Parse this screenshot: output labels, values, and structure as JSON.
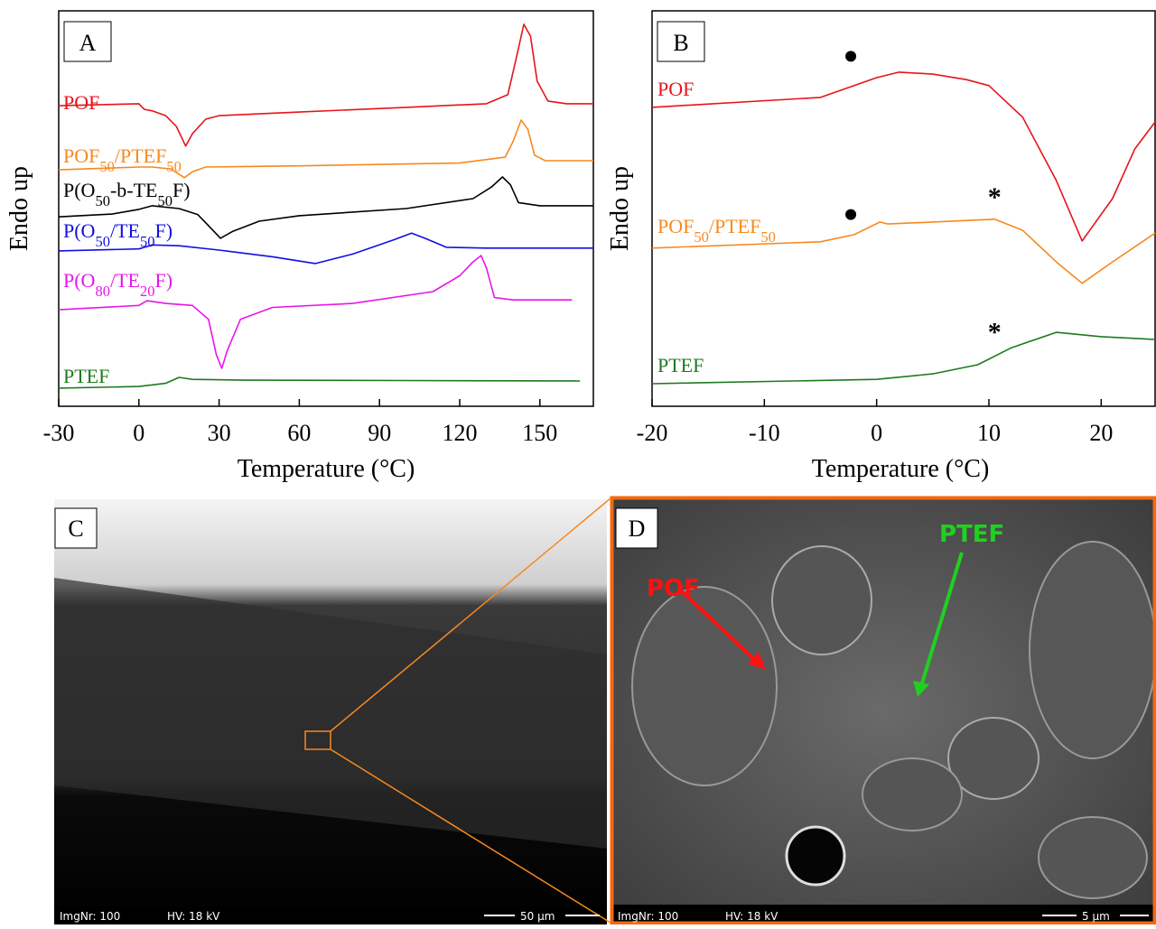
{
  "chart_data": [
    {
      "type": "line",
      "panel": "A",
      "xlabel": "Temperature (°C)",
      "ylabel": "Endo up",
      "xlim": [
        -30,
        170
      ],
      "xticks": [
        -30,
        0,
        30,
        60,
        90,
        120,
        150
      ],
      "ylim": [
        0,
        100
      ],
      "series": [
        {
          "name": "POF",
          "color": "#e8141b",
          "x": [
            -30,
            0,
            2,
            5,
            10,
            14,
            17.5,
            20,
            25,
            30,
            60,
            100,
            130,
            138,
            141.5,
            144,
            146.5,
            149,
            153,
            160,
            170
          ],
          "values": [
            76.0,
            76.5,
            75.1,
            74.7,
            73.5,
            70.8,
            65.8,
            68.9,
            72.6,
            73.5,
            74.4,
            75.6,
            76.5,
            78.8,
            89.0,
            96.6,
            93.6,
            82.2,
            77.2,
            76.5,
            76.5
          ]
        },
        {
          "name": "POF50/PTEF50",
          "color": "#f7891f",
          "x": [
            -30,
            0,
            5,
            12,
            17,
            20,
            25,
            60,
            120,
            137,
            140,
            143,
            145.5,
            148,
            152,
            170
          ],
          "values": [
            59.8,
            60.5,
            60.5,
            60.0,
            57.8,
            59.3,
            60.5,
            60.8,
            61.5,
            63.0,
            67.0,
            72.4,
            70.0,
            63.5,
            62.1,
            62.1
          ]
        },
        {
          "name": "P(O50-b-TE50F)",
          "color": "#000000",
          "x": [
            -30,
            -10,
            0,
            5,
            15,
            22,
            27,
            30.5,
            35,
            45,
            60,
            100,
            125,
            132,
            136,
            139,
            142,
            150,
            170
          ],
          "values": [
            47.9,
            48.6,
            49.8,
            50.7,
            50.0,
            48.5,
            45.0,
            42.5,
            44.2,
            46.8,
            48.2,
            50.0,
            52.5,
            55.5,
            58.0,
            56.0,
            51.5,
            50.7,
            50.7
          ]
        },
        {
          "name": "P(O50/TE50F)",
          "color": "#1010e0",
          "x": [
            -30,
            0,
            5,
            15,
            30,
            50,
            66,
            80,
            95,
            102,
            107,
            115,
            130,
            170
          ],
          "values": [
            39.3,
            39.8,
            40.8,
            40.6,
            39.5,
            37.8,
            36.1,
            38.5,
            42.0,
            43.8,
            42.5,
            40.2,
            40.0,
            40.0
          ]
        },
        {
          "name": "P(O80/TE20F)",
          "color": "#e815e8",
          "x": [
            -30,
            0,
            3,
            10,
            20,
            26,
            29,
            31,
            33,
            38,
            50,
            80,
            110,
            120,
            125,
            128,
            130,
            133,
            140,
            162
          ],
          "values": [
            24.4,
            25.5,
            26.7,
            26.0,
            25.5,
            22.0,
            13.0,
            9.6,
            14.0,
            22.0,
            25.0,
            26.0,
            29.0,
            33.0,
            36.5,
            38.1,
            35.0,
            27.5,
            26.9,
            26.9
          ]
        },
        {
          "name": "PTEF",
          "color": "#1f7a1f",
          "x": [
            -30,
            0,
            10,
            15,
            20,
            40,
            100,
            165
          ],
          "values": [
            4.6,
            5.0,
            5.8,
            7.3,
            6.8,
            6.6,
            6.5,
            6.4
          ]
        }
      ]
    },
    {
      "type": "line",
      "panel": "B",
      "xlabel": "Temperature (°C)",
      "ylabel": "Endo up",
      "xlim": [
        -20,
        24.8
      ],
      "xticks": [
        -20,
        -10,
        0,
        10,
        20
      ],
      "ylim": [
        0,
        100
      ],
      "series": [
        {
          "name": "POF",
          "color": "#e8141b",
          "x": [
            -20,
            -5,
            -2,
            0,
            2,
            5,
            8,
            10,
            13,
            16,
            18.3,
            21,
            23,
            24.8
          ],
          "values": [
            75.6,
            78.1,
            81.1,
            83.1,
            84.5,
            84.0,
            82.6,
            81.1,
            73.1,
            57.1,
            41.8,
            52.5,
            65.1,
            71.9
          ]
        },
        {
          "name": "POF50/PTEF50",
          "color": "#f7891f",
          "x": [
            -20,
            -5,
            -2,
            0.3,
            1,
            5,
            10.5,
            13,
            16,
            18.3,
            21,
            24.8
          ],
          "values": [
            40.0,
            41.6,
            43.4,
            46.6,
            46.1,
            46.6,
            47.3,
            44.5,
            36.5,
            31.1,
            36.5,
            43.8
          ]
        },
        {
          "name": "PTEF",
          "color": "#1f7a1f",
          "x": [
            -20,
            0,
            5,
            9,
            12,
            16,
            20,
            24.8
          ],
          "values": [
            5.7,
            6.8,
            8.2,
            10.5,
            14.8,
            18.7,
            17.6,
            16.9
          ]
        }
      ],
      "markers": [
        {
          "x": -2.3,
          "y": 88.5
        },
        {
          "x": -2.3,
          "y": 48.5
        }
      ],
      "annotations": [
        {
          "text": "*",
          "x": 10.5,
          "y": 50.7
        },
        {
          "text": "*",
          "x": 10.5,
          "y": 16.5
        }
      ]
    }
  ],
  "images": [
    {
      "panel": "C",
      "info": [
        "ImgNr: 100",
        "HV: 18 kV"
      ],
      "scale": "50 µm"
    },
    {
      "panel": "D",
      "info": [
        "ImgNr: 100",
        "HV: 18 kV"
      ],
      "scale": "5 µm",
      "labels": [
        "POF",
        "PTEF"
      ]
    }
  ]
}
